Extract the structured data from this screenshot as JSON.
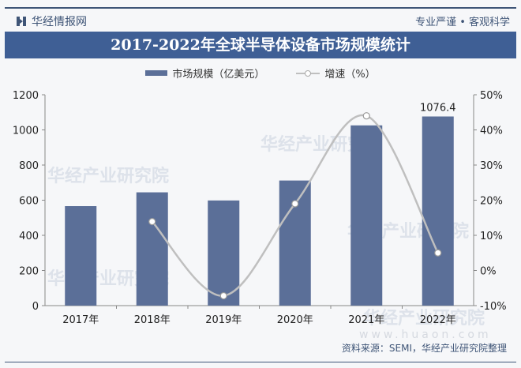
{
  "header": {
    "brand": "华经情报网",
    "slogan": "专业严谨 • 客观科学"
  },
  "source": "资料来源：SEMI，华经产业研究院整理",
  "watermark": "华经产业研究院",
  "watermark_url": "www.huaon.com",
  "chart_data": {
    "type": "bar+line",
    "title": "2017-2022年全球半导体设备市场规模统计",
    "categories": [
      "2017年",
      "2018年",
      "2019年",
      "2020年",
      "2021年",
      "2022年"
    ],
    "series": [
      {
        "name": "市场规模（亿美元）",
        "type": "bar",
        "axis": "left",
        "color": "#5b6f98",
        "values": [
          566.2,
          644.7,
          598.4,
          711.9,
          1025.8,
          1076.4
        ]
      },
      {
        "name": "增速（%）",
        "type": "line",
        "axis": "right",
        "color": "#bfbfbf",
        "values": [
          null,
          13.9,
          -7.2,
          19.0,
          44.0,
          5.0
        ]
      }
    ],
    "data_labels": [
      {
        "category": "2022年",
        "text": "1076.4"
      }
    ],
    "left_axis": {
      "ylim": [
        0,
        1200
      ],
      "ticks": [
        "0",
        "200",
        "400",
        "600",
        "800",
        "1000",
        "1200"
      ]
    },
    "right_axis": {
      "ylim": [
        -10,
        50
      ],
      "ticks": [
        "-10%",
        "0%",
        "10%",
        "20%",
        "30%",
        "40%",
        "50%"
      ]
    },
    "legend": "top",
    "grid": false
  }
}
